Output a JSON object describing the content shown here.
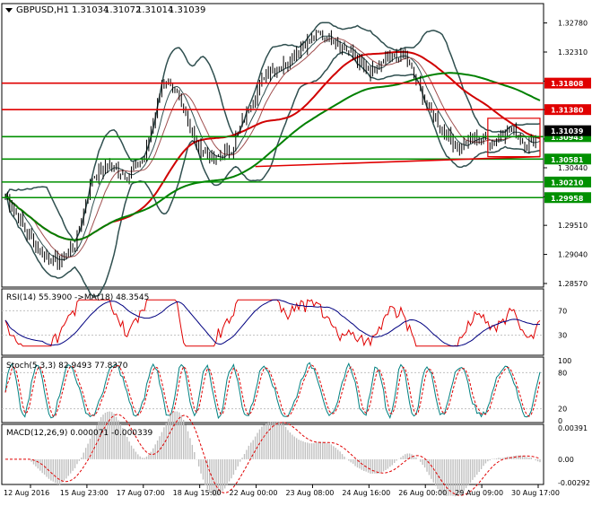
{
  "window": {
    "symbol_title": "GBPUSD,H1",
    "ohlc": [
      "1.31034",
      "1.31072",
      "1.31014",
      "1.31039"
    ]
  },
  "colors": {
    "background": "#ffffff",
    "grid": "#c8c8c8",
    "price_bars": "#000000",
    "level_red": "#e00000",
    "level_green": "#009000",
    "bollinger": "#2f4f4f",
    "ma_fast": "#2f4f4f",
    "ma_mid": "#a05050",
    "ma_red": "#d00000",
    "ma_green": "#008000",
    "rsi": "#e00000",
    "rsi_ma": "#000080",
    "stoch_main": "#008080",
    "stoch_signal": "#e00000",
    "macd_hist": "#c0c0c0",
    "macd_signal": "#e00000",
    "price_tag_gray": "#000000",
    "label_text": "#ffffff"
  },
  "chart_data": {
    "type": "line",
    "symbol": "GBPUSD",
    "timeframe": "H1",
    "x_tick_labels": [
      "12 Aug 2016",
      "15 Aug 23:00",
      "17 Aug 07:00",
      "18 Aug 15:00",
      "22 Aug 00:00",
      "23 Aug 08:00",
      "24 Aug 16:00",
      "26 Aug 00:00",
      "29 Aug 09:00",
      "30 Aug 17:00"
    ],
    "price_axis": {
      "ylim": [
        1.2857,
        1.3289
      ],
      "tick_labels": [
        "1.32780",
        "1.32310",
        "1.31840",
        "1.31380",
        "1.30905",
        "1.30440",
        "1.29970",
        "1.29510",
        "1.29040",
        "1.28570"
      ],
      "tick_values": [
        1.3278,
        1.3231,
        1.3184,
        1.3138,
        1.30905,
        1.3044,
        1.2997,
        1.2951,
        1.2904,
        1.2857
      ]
    },
    "levels": [
      {
        "label": "1.31808",
        "value": 1.31808,
        "color": "red"
      },
      {
        "label": "1.31380",
        "value": 1.3138,
        "color": "red"
      },
      {
        "label": "1.30943",
        "value": 1.30943,
        "color": "green"
      },
      {
        "label": "1.30581",
        "value": 1.30581,
        "color": "green"
      },
      {
        "label": "1.30210",
        "value": 1.3021,
        "color": "green"
      },
      {
        "label": "1.29958",
        "value": 1.29958,
        "color": "green"
      }
    ],
    "current_price_label": "1.31039",
    "current_price": 1.31039,
    "price_keypoints": [
      [
        0,
        1.3
      ],
      [
        8,
        1.295
      ],
      [
        16,
        1.2908
      ],
      [
        24,
        1.289
      ],
      [
        32,
        1.292
      ],
      [
        40,
        1.303
      ],
      [
        48,
        1.3048
      ],
      [
        56,
        1.303
      ],
      [
        64,
        1.306
      ],
      [
        72,
        1.318
      ],
      [
        80,
        1.316
      ],
      [
        88,
        1.308
      ],
      [
        96,
        1.3055
      ],
      [
        104,
        1.3075
      ],
      [
        112,
        1.314
      ],
      [
        120,
        1.32
      ],
      [
        128,
        1.321
      ],
      [
        136,
        1.324
      ],
      [
        144,
        1.326
      ],
      [
        152,
        1.325
      ],
      [
        160,
        1.3225
      ],
      [
        168,
        1.3195
      ],
      [
        176,
        1.322
      ],
      [
        184,
        1.3225
      ],
      [
        192,
        1.316
      ],
      [
        200,
        1.311
      ],
      [
        208,
        1.3075
      ],
      [
        216,
        1.3095
      ],
      [
        224,
        1.3085
      ],
      [
        232,
        1.311
      ],
      [
        240,
        1.308
      ],
      [
        246,
        1.31
      ]
    ],
    "rsi": {
      "label": "RSI(14) 55.3900  ->MA(18) 48.3545",
      "ylim": [
        0,
        100
      ],
      "tick_labels": [
        "70",
        "30"
      ],
      "tick_values": [
        70,
        30
      ]
    },
    "stoch": {
      "label": "Stoch(5,3,3) 82.9493 77.8370",
      "ylim": [
        0,
        100
      ],
      "tick_labels": [
        "100",
        "80",
        "20",
        "0"
      ],
      "tick_values": [
        100,
        80,
        20,
        0
      ]
    },
    "macd": {
      "label": "MACD(12,26,9) 0.000071 -0.000339",
      "ylim": [
        -0.00292,
        0.00391
      ],
      "tick_labels": [
        "0.00391",
        "0.00",
        "-0.00292"
      ],
      "tick_values": [
        0.00391,
        0.0,
        -0.00292
      ]
    }
  }
}
